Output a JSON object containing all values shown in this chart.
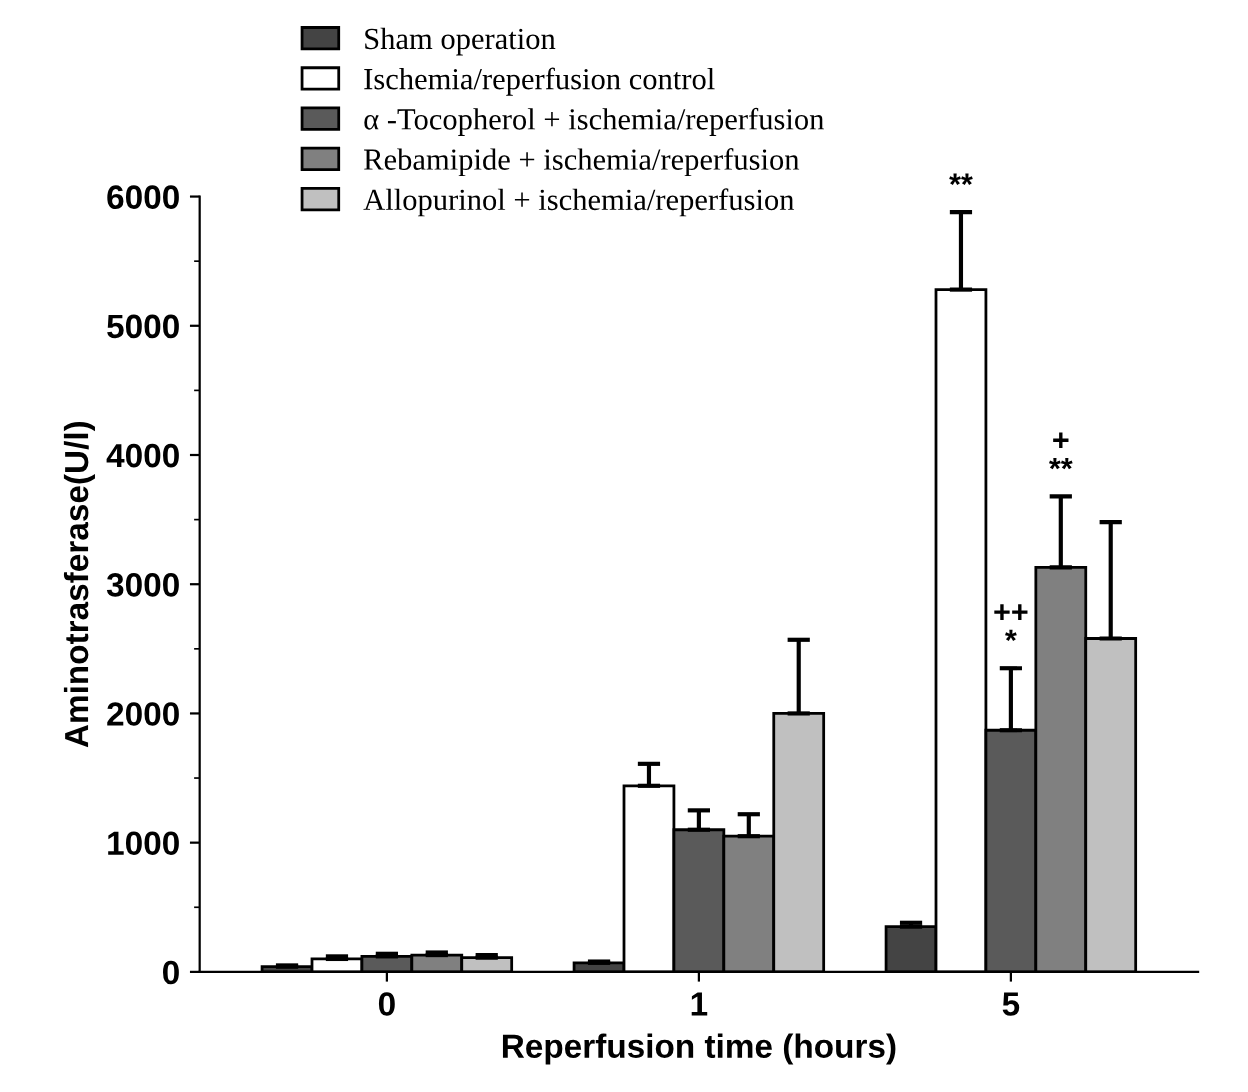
{
  "chart_data": {
    "type": "bar",
    "xlabel": "Reperfusion time (hours)",
    "ylabel": "Aminotrasferase(U/l)",
    "categories": [
      "0",
      "1",
      "5"
    ],
    "series": [
      {
        "name": "Sham operation",
        "color": "#444444",
        "values": [
          40,
          70,
          350
        ],
        "errors": [
          10,
          10,
          30
        ]
      },
      {
        "name": "Ischemia/reperfusion control",
        "color": "#ffffff",
        "values": [
          100,
          1440,
          5280
        ],
        "errors": [
          20,
          170,
          600
        ]
      },
      {
        "name": "α -Tocopherol + ischemia/reperfusion",
        "color": "#5a5a5a",
        "values": [
          120,
          1100,
          1870
        ],
        "errors": [
          20,
          150,
          480
        ]
      },
      {
        "name": "Rebamipide + ischemia/reperfusion",
        "color": "#808080",
        "values": [
          130,
          1050,
          3130
        ],
        "errors": [
          20,
          170,
          550
        ]
      },
      {
        "name": "Allopurinol + ischemia/reperfusion",
        "color": "#c0c0c0",
        "values": [
          110,
          2000,
          2580
        ],
        "errors": [
          20,
          570,
          900
        ]
      }
    ],
    "ylim": [
      0,
      6000
    ],
    "yticks": [
      0,
      1000,
      2000,
      3000,
      4000,
      5000,
      6000
    ],
    "annotations": [
      "**",
      "++\n*",
      "+\n**"
    ],
    "legend": "top left",
    "grid": false
  }
}
